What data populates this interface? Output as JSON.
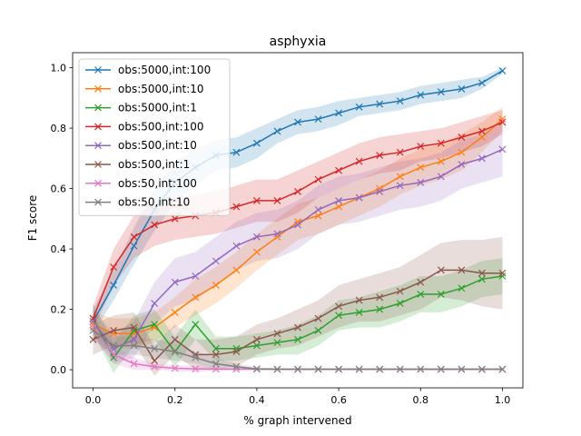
{
  "chart_data": {
    "type": "line",
    "title": "asphyxia",
    "xlabel": "% graph intervened",
    "ylabel": "F1 score",
    "xlim": [
      -0.05,
      1.05
    ],
    "ylim": [
      -0.06,
      1.05
    ],
    "xticks": [
      0.0,
      0.2,
      0.4,
      0.6,
      0.8,
      1.0
    ],
    "xtick_labels": [
      "0.0",
      "0.2",
      "0.4",
      "0.6",
      "0.8",
      "1.0"
    ],
    "yticks": [
      0.0,
      0.2,
      0.4,
      0.6,
      0.8,
      1.0
    ],
    "ytick_labels": [
      "0.0",
      "0.2",
      "0.4",
      "0.6",
      "0.8",
      "1.0"
    ],
    "grid": false,
    "legend_position": "top-left",
    "marker": "x",
    "x": [
      0.0,
      0.05,
      0.1,
      0.15,
      0.2,
      0.25,
      0.3,
      0.35,
      0.4,
      0.45,
      0.5,
      0.55,
      0.6,
      0.65,
      0.7,
      0.75,
      0.8,
      0.85,
      0.9,
      0.95,
      1.0
    ],
    "series": [
      {
        "name": "obs:5000,int:100",
        "color": "#1f77b4",
        "values": [
          0.16,
          0.28,
          0.41,
          0.53,
          0.62,
          0.67,
          0.71,
          0.72,
          0.75,
          0.79,
          0.82,
          0.83,
          0.85,
          0.87,
          0.88,
          0.89,
          0.91,
          0.92,
          0.93,
          0.95,
          0.99
        ],
        "band": [
          0.04,
          0.05,
          0.06,
          0.07,
          0.07,
          0.06,
          0.05,
          0.05,
          0.05,
          0.04,
          0.04,
          0.04,
          0.04,
          0.03,
          0.03,
          0.03,
          0.03,
          0.03,
          0.03,
          0.02,
          0.01
        ]
      },
      {
        "name": "obs:5000,int:10",
        "color": "#ff7f0e",
        "values": [
          0.15,
          0.12,
          0.12,
          0.14,
          0.19,
          0.24,
          0.28,
          0.33,
          0.39,
          0.44,
          0.49,
          0.51,
          0.54,
          0.57,
          0.6,
          0.64,
          0.67,
          0.69,
          0.72,
          0.77,
          0.83
        ],
        "band": [
          0.04,
          0.05,
          0.05,
          0.05,
          0.05,
          0.06,
          0.06,
          0.06,
          0.06,
          0.06,
          0.06,
          0.06,
          0.06,
          0.06,
          0.06,
          0.06,
          0.06,
          0.06,
          0.06,
          0.05,
          0.04
        ]
      },
      {
        "name": "obs:5000,int:1",
        "color": "#2ca02c",
        "values": [
          0.17,
          0.04,
          0.13,
          0.15,
          0.06,
          0.15,
          0.07,
          0.07,
          0.08,
          0.09,
          0.1,
          0.13,
          0.18,
          0.19,
          0.2,
          0.22,
          0.25,
          0.25,
          0.27,
          0.3,
          0.31
        ],
        "band": [
          0.05,
          0.05,
          0.05,
          0.05,
          0.05,
          0.05,
          0.04,
          0.04,
          0.04,
          0.04,
          0.05,
          0.05,
          0.05,
          0.05,
          0.06,
          0.06,
          0.06,
          0.06,
          0.06,
          0.06,
          0.06
        ]
      },
      {
        "name": "obs:500,int:100",
        "color": "#d62728",
        "values": [
          0.17,
          0.34,
          0.44,
          0.48,
          0.5,
          0.51,
          0.52,
          0.54,
          0.56,
          0.56,
          0.59,
          0.63,
          0.66,
          0.69,
          0.71,
          0.72,
          0.74,
          0.75,
          0.77,
          0.79,
          0.82
        ],
        "band": [
          0.04,
          0.06,
          0.07,
          0.07,
          0.07,
          0.07,
          0.07,
          0.07,
          0.07,
          0.07,
          0.07,
          0.06,
          0.06,
          0.06,
          0.06,
          0.06,
          0.05,
          0.05,
          0.05,
          0.05,
          0.04
        ]
      },
      {
        "name": "obs:500,int:10",
        "color": "#9467bd",
        "values": [
          0.16,
          0.07,
          0.1,
          0.22,
          0.29,
          0.31,
          0.36,
          0.41,
          0.44,
          0.45,
          0.48,
          0.53,
          0.56,
          0.57,
          0.59,
          0.61,
          0.62,
          0.64,
          0.68,
          0.7,
          0.73
        ],
        "band": [
          0.04,
          0.05,
          0.06,
          0.07,
          0.08,
          0.08,
          0.08,
          0.08,
          0.08,
          0.08,
          0.08,
          0.08,
          0.08,
          0.08,
          0.08,
          0.08,
          0.08,
          0.08,
          0.08,
          0.08,
          0.09
        ]
      },
      {
        "name": "obs:500,int:1",
        "color": "#8c564b",
        "values": [
          0.1,
          0.13,
          0.14,
          0.03,
          0.1,
          0.05,
          0.05,
          0.06,
          0.1,
          0.12,
          0.14,
          0.17,
          0.21,
          0.23,
          0.24,
          0.26,
          0.29,
          0.33,
          0.33,
          0.32,
          0.32
        ],
        "band": [
          0.05,
          0.05,
          0.05,
          0.05,
          0.05,
          0.05,
          0.05,
          0.05,
          0.05,
          0.05,
          0.06,
          0.06,
          0.07,
          0.07,
          0.08,
          0.08,
          0.09,
          0.09,
          0.1,
          0.11,
          0.12
        ]
      },
      {
        "name": "obs:50,int:100",
        "color": "#e377c2",
        "values": [
          0.14,
          0.05,
          0.02,
          0.01,
          0.005,
          0.003,
          0.002,
          0.002,
          0.002,
          0.001,
          0.001,
          0.001,
          0.001,
          0.001,
          0.001,
          0.001,
          0.001,
          0.001,
          0.001,
          0.001,
          0.001
        ],
        "band": [
          0.03,
          0.03,
          0.02,
          0.01,
          0.01,
          0.01,
          0.005,
          0.005,
          0.003,
          0.002,
          0.002,
          0.002,
          0.002,
          0.002,
          0.002,
          0.002,
          0.002,
          0.002,
          0.002,
          0.002,
          0.002
        ]
      },
      {
        "name": "obs:50,int:10",
        "color": "#7f7f7f",
        "values": [
          0.13,
          0.08,
          0.08,
          0.07,
          0.06,
          0.04,
          0.02,
          0.01,
          0.003,
          0.002,
          0.002,
          0.002,
          0.002,
          0.002,
          0.002,
          0.002,
          0.002,
          0.002,
          0.002,
          0.002,
          0.002
        ],
        "band": [
          0.03,
          0.03,
          0.03,
          0.03,
          0.03,
          0.02,
          0.02,
          0.01,
          0.005,
          0.003,
          0.003,
          0.003,
          0.003,
          0.003,
          0.003,
          0.003,
          0.003,
          0.003,
          0.003,
          0.003,
          0.003
        ]
      }
    ]
  }
}
